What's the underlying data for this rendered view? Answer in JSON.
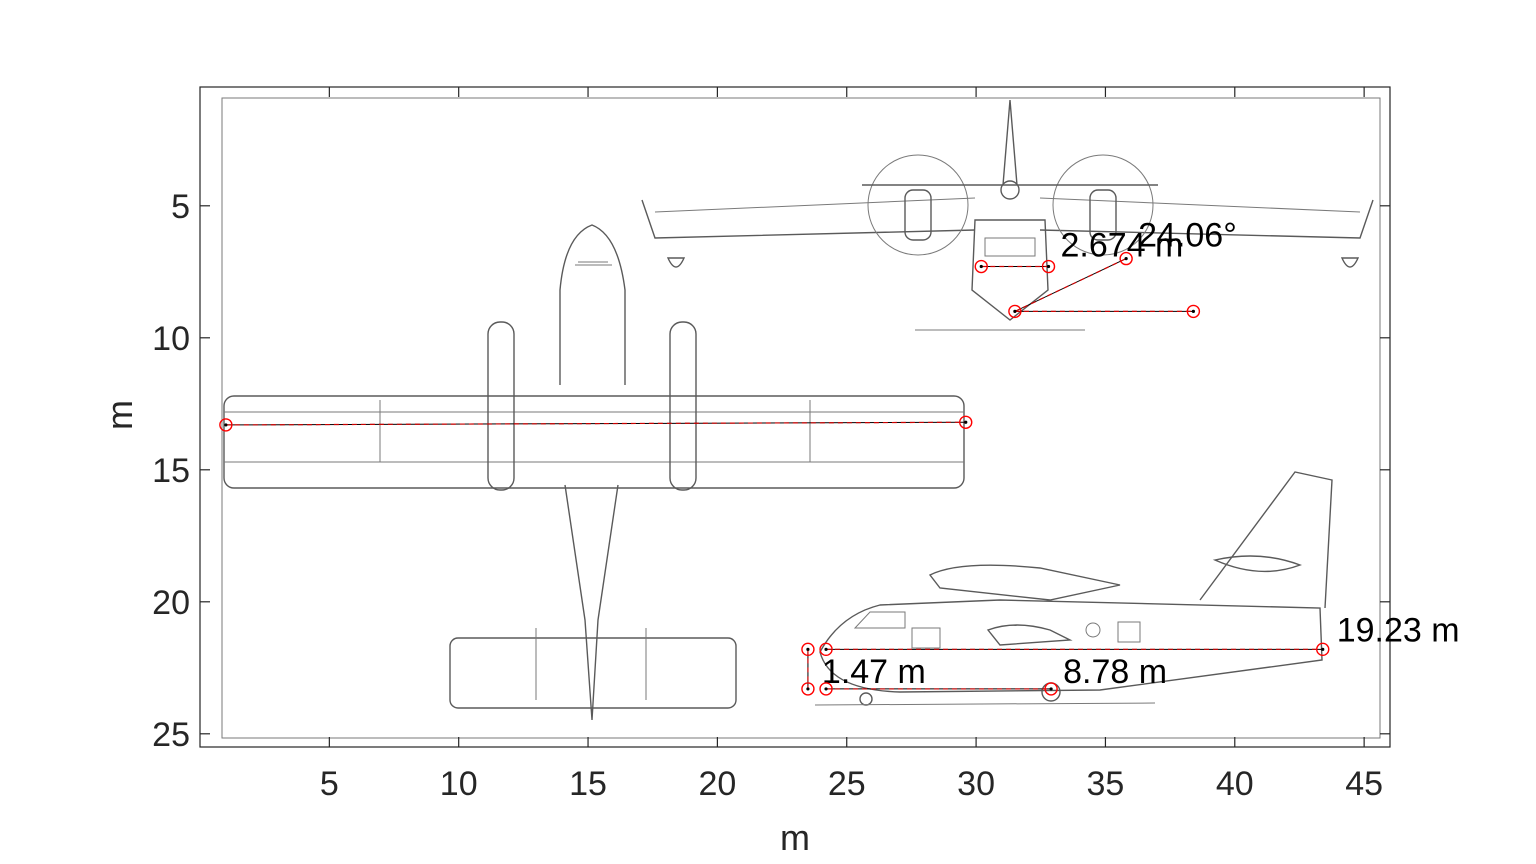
{
  "chart_data": {
    "type": "scatter",
    "title": "",
    "xlabel": "m",
    "ylabel": "m",
    "xlim": [
      0,
      46
    ],
    "ylim": [
      25.5,
      0.5
    ],
    "y_reversed": true,
    "xticks": [
      5,
      10,
      15,
      20,
      25,
      30,
      35,
      40,
      45
    ],
    "yticks": [
      5,
      10,
      15,
      20,
      25
    ],
    "grid": false,
    "colors": {
      "marker": "#ff0000",
      "line": "#cc0000",
      "axis": "#262626",
      "drawing": "#5a5a5a"
    },
    "measurements": [
      {
        "label": "",
        "points": [
          [
            1.0,
            13.3
          ],
          [
            29.6,
            13.2
          ]
        ],
        "kind": "distance"
      },
      {
        "label": "2.674 m",
        "points": [
          [
            30.2,
            7.3
          ],
          [
            32.8,
            7.3
          ]
        ],
        "kind": "distance"
      },
      {
        "label": "24.06°",
        "points": [
          [
            35.8,
            7.0
          ],
          [
            31.5,
            9.0
          ],
          [
            38.4,
            9.0
          ]
        ],
        "kind": "angle"
      },
      {
        "label": "1.47 m",
        "points": [
          [
            23.5,
            21.8
          ],
          [
            23.5,
            23.3
          ]
        ],
        "kind": "distance"
      },
      {
        "label": "8.78 m",
        "points": [
          [
            24.2,
            23.3
          ],
          [
            32.9,
            23.3
          ]
        ],
        "kind": "distance"
      },
      {
        "label": "19.23 m",
        "points": [
          [
            24.2,
            21.8
          ],
          [
            43.4,
            21.8
          ]
        ],
        "kind": "distance"
      }
    ],
    "background": "aircraft-three-view-drawing"
  }
}
